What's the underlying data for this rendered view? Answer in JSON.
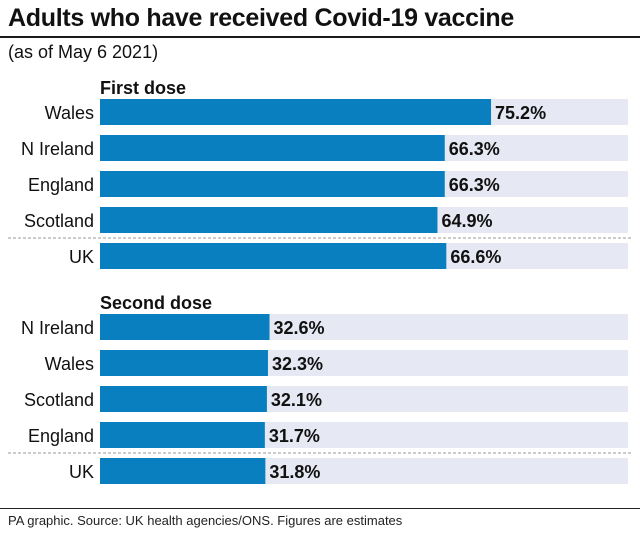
{
  "header": {
    "title": "Adults who have received Covid-19 vaccine",
    "subtitle": "(as of May 6 2021)"
  },
  "footer": {
    "source": "PA graphic. Source: UK health agencies/ONS. Figures are estimates"
  },
  "colors": {
    "bar": "#0a7fc0",
    "track": "#e6e8f3",
    "divider": "#9a9a9a",
    "text": "#111111"
  },
  "chart_data": [
    {
      "type": "bar",
      "orientation": "horizontal",
      "title": "First dose",
      "unit": "%",
      "xlim": [
        0,
        100
      ],
      "categories": [
        "Wales",
        "N Ireland",
        "England",
        "Scotland",
        "UK"
      ],
      "values": [
        75.2,
        66.3,
        66.3,
        64.9,
        66.6
      ],
      "labels": [
        "75.2%",
        "66.3%",
        "66.3%",
        "64.9%",
        "66.6%"
      ]
    },
    {
      "type": "bar",
      "orientation": "horizontal",
      "title": "Second dose",
      "unit": "%",
      "xlim": [
        0,
        100
      ],
      "categories": [
        "N Ireland",
        "Wales",
        "Scotland",
        "England",
        "UK"
      ],
      "values": [
        32.6,
        32.3,
        32.1,
        31.7,
        31.8
      ],
      "labels": [
        "32.6%",
        "32.3%",
        "32.1%",
        "31.7%",
        "31.8%"
      ]
    }
  ]
}
